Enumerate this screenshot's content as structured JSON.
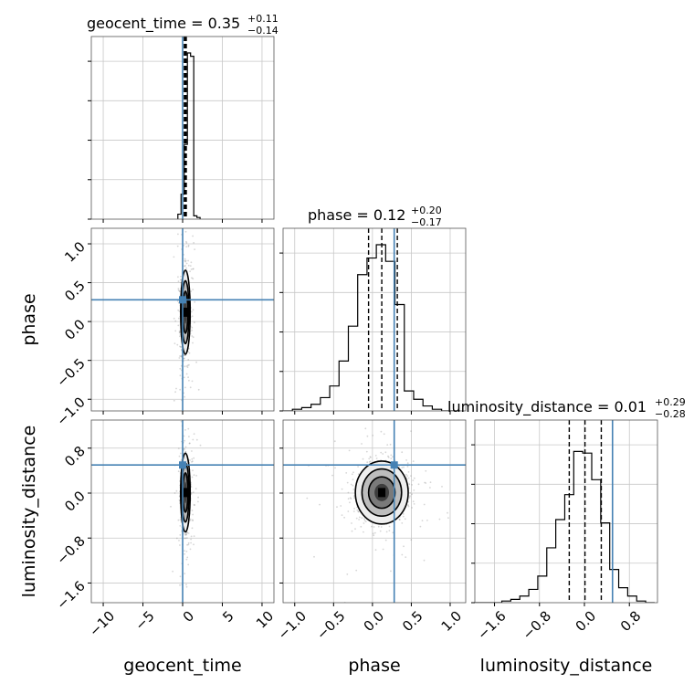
{
  "chart_data": {
    "type": "corner",
    "parameters": [
      "geocent_time",
      "phase",
      "luminosity_distance"
    ],
    "truths": {
      "geocent_time": 0.0,
      "phase": 0.28,
      "luminosity_distance": 0.5
    },
    "titles": [
      {
        "param": "geocent_time",
        "label": "geocent_time = 0.35",
        "plus": "+0.11",
        "minus": "−0.14"
      },
      {
        "param": "phase",
        "label": "phase = 0.12",
        "plus": "+0.20",
        "minus": "−0.17"
      },
      {
        "param": "luminosity_distance",
        "label": "luminosity_distance = 0.01",
        "plus": "+0.29",
        "minus": "−0.28"
      }
    ],
    "axes": {
      "geocent_time": {
        "range": [
          -11.5,
          11.5
        ],
        "ticks": [
          -10,
          -5,
          0,
          5,
          10
        ],
        "tick_labels": [
          "−10",
          "−5",
          "0",
          "5",
          "10"
        ]
      },
      "phase": {
        "range": [
          -1.15,
          1.2
        ],
        "ticks": [
          -1.0,
          -0.5,
          0.0,
          0.5,
          1.0
        ],
        "tick_labels": [
          "−1.0",
          "−0.5",
          "0.0",
          "0.5",
          "1.0"
        ]
      },
      "luminosity_distance": {
        "range": [
          -1.95,
          1.3
        ],
        "ticks": [
          -1.6,
          -0.8,
          0.0,
          0.8
        ],
        "tick_labels": [
          "−1.6",
          "−0.8",
          "0.0",
          "0.8"
        ]
      }
    },
    "histograms": {
      "geocent_time": {
        "bins": [
          -0.6,
          -0.2,
          0.2,
          0.6,
          1.0,
          1.4,
          1.8,
          2.2
        ],
        "counts": [
          0.03,
          0.15,
          0.45,
          1.0,
          0.98,
          0.02,
          0.01
        ],
        "quantiles": [
          0.21,
          0.35,
          0.46
        ]
      },
      "phase": {
        "bins": [
          -1.15,
          -1.03,
          -0.91,
          -0.79,
          -0.67,
          -0.55,
          -0.43,
          -0.31,
          -0.19,
          -0.07,
          0.05,
          0.17,
          0.29,
          0.41,
          0.53,
          0.65,
          0.77,
          0.89,
          1.01,
          1.13
        ],
        "counts": [
          0.0,
          0.01,
          0.02,
          0.04,
          0.08,
          0.15,
          0.3,
          0.51,
          0.82,
          0.92,
          1.0,
          0.9,
          0.64,
          0.12,
          0.07,
          0.03,
          0.01,
          0.0,
          0.0
        ],
        "quantiles": [
          -0.05,
          0.12,
          0.32
        ]
      },
      "luminosity_distance": {
        "bins": [
          -1.95,
          -1.79,
          -1.63,
          -1.47,
          -1.31,
          -1.15,
          -0.99,
          -0.83,
          -0.67,
          -0.51,
          -0.35,
          -0.19,
          -0.03,
          0.13,
          0.29,
          0.45,
          0.61,
          0.77,
          0.93,
          1.09,
          1.25
        ],
        "counts": [
          0.0,
          0.0,
          0.0,
          0.01,
          0.02,
          0.04,
          0.08,
          0.16,
          0.33,
          0.5,
          0.65,
          0.91,
          0.9,
          0.74,
          0.48,
          0.2,
          0.09,
          0.04,
          0.01,
          0.0
        ],
        "quantiles": [
          -0.27,
          0.01,
          0.3
        ]
      }
    },
    "pairs": [
      {
        "x": "geocent_time",
        "y": "phase",
        "center": [
          0.35,
          0.12
        ],
        "sd": [
          0.3,
          0.27
        ]
      },
      {
        "x": "geocent_time",
        "y": "luminosity_distance",
        "center": [
          0.35,
          0.01
        ],
        "sd": [
          0.3,
          0.35
        ]
      },
      {
        "x": "phase",
        "y": "luminosity_distance",
        "center": [
          0.12,
          0.01
        ],
        "sd": [
          0.17,
          0.28
        ]
      }
    ],
    "colors": {
      "truth": "#4682b4",
      "hist": "#000000",
      "grid": "#c8c8c8",
      "points": "#8a8a8a"
    }
  }
}
